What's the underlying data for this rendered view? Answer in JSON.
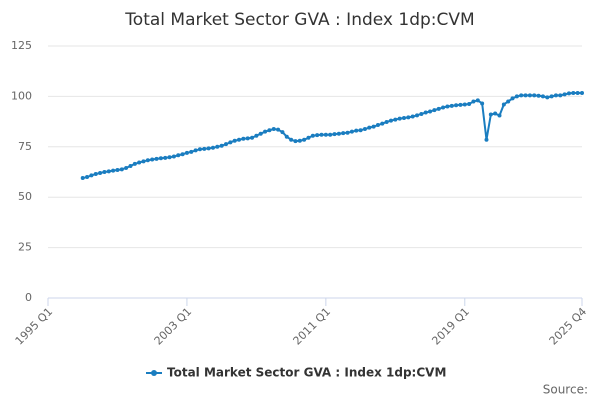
{
  "chart_data": {
    "type": "line",
    "title": "Total Market Sector GVA : Index 1dp:CVM",
    "source": "Source:",
    "categories": [
      "1995 Q1",
      null,
      null,
      null,
      null,
      null,
      null,
      null,
      null,
      null,
      null,
      null,
      null,
      null,
      null,
      null,
      null,
      null,
      null,
      null,
      null,
      null,
      null,
      null,
      null,
      null,
      null,
      null,
      null,
      null,
      null,
      null,
      "2003 Q1",
      null,
      null,
      null,
      null,
      null,
      null,
      null,
      null,
      null,
      null,
      null,
      null,
      null,
      null,
      null,
      null,
      null,
      null,
      null,
      null,
      null,
      null,
      null,
      null,
      null,
      null,
      null,
      null,
      null,
      null,
      null,
      "2011 Q1",
      null,
      null,
      null,
      null,
      null,
      null,
      null,
      null,
      null,
      null,
      null,
      null,
      null,
      null,
      null,
      null,
      null,
      null,
      null,
      null,
      null,
      null,
      null,
      null,
      null,
      null,
      null,
      null,
      null,
      null,
      null,
      "2019 Q1",
      null,
      null,
      null,
      null,
      null,
      null,
      null,
      null,
      null,
      null,
      null,
      null,
      null,
      null,
      null,
      null,
      null,
      null,
      null,
      null,
      null,
      null,
      null,
      null,
      null,
      null,
      "2025 Q4"
    ],
    "series": [
      {
        "name": "Total Market Sector GVA : Index 1dp:CVM",
        "color": "#1a7dc0",
        "values": [
          null,
          null,
          null,
          null,
          null,
          null,
          null,
          null,
          59.5,
          60,
          60.8,
          61.5,
          62,
          62.5,
          62.8,
          63.2,
          63.5,
          63.8,
          64.5,
          65.5,
          66.5,
          67.2,
          67.8,
          68.3,
          68.7,
          69,
          69.3,
          69.5,
          69.8,
          70.2,
          70.8,
          71.3,
          72,
          72.5,
          73.2,
          73.8,
          74,
          74.2,
          74.5,
          75,
          75.5,
          76.3,
          77.2,
          78,
          78.5,
          79,
          79.2,
          79.5,
          80.5,
          81.5,
          82.5,
          83.2,
          83.8,
          83.5,
          82.3,
          80,
          78.5,
          77.8,
          78,
          78.5,
          79.5,
          80.5,
          80.8,
          81,
          81,
          81,
          81.3,
          81.5,
          81.8,
          82,
          82.5,
          83,
          83.2,
          83.8,
          84.5,
          85,
          85.8,
          86.5,
          87.3,
          88,
          88.5,
          89,
          89.3,
          89.6,
          90,
          90.6,
          91.3,
          92,
          92.5,
          93.2,
          93.8,
          94.5,
          95,
          95.3,
          95.6,
          95.8,
          96,
          96.2,
          97.5,
          98,
          96.5,
          78.5,
          91,
          91.5,
          90.5,
          96,
          97.5,
          99,
          100,
          100.5,
          100.5,
          100.5,
          100.5,
          100.3,
          100,
          99.5,
          100,
          100.5,
          100.5,
          101,
          101.5,
          101.7,
          101.7,
          101.7
        ]
      }
    ],
    "ylim": [
      0,
      125
    ],
    "yticks": [
      0,
      25,
      50,
      75,
      100,
      125
    ],
    "grid": true
  }
}
